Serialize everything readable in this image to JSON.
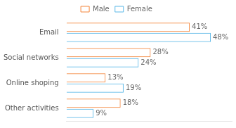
{
  "chart_data": {
    "type": "bar",
    "orientation": "horizontal",
    "categories": [
      "Email",
      "Social networks",
      "Online shoping",
      "Other activities"
    ],
    "series": [
      {
        "name": "Male",
        "color": "#F4863C",
        "values": [
          41,
          28,
          13,
          18
        ],
        "value_labels": [
          "41%",
          "28%",
          "13%",
          "18%"
        ]
      },
      {
        "name": "Female",
        "color": "#5BB8E8",
        "values": [
          48,
          24,
          19,
          9
        ],
        "value_labels": [
          "48%",
          "24%",
          "19%",
          "9%"
        ]
      }
    ],
    "xlim": [
      0,
      55
    ],
    "grid": false,
    "legend": "top",
    "data_labels": true,
    "tick_labels": "y"
  }
}
